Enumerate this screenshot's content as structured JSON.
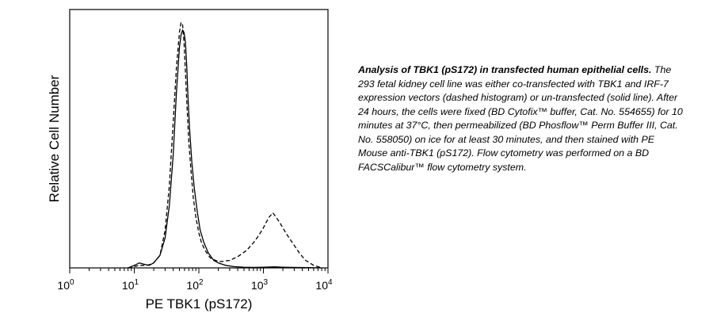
{
  "chart_data": {
    "type": "line",
    "xlabel": "PE TBK1 (pS172)",
    "ylabel": "Relative Cell Number",
    "x_scale": "log",
    "xlim": [
      1,
      10000
    ],
    "ylim": [
      0,
      1.0
    ],
    "grid": false,
    "x_tick_labels": [
      {
        "value": 1,
        "base": "10",
        "exp": "0"
      },
      {
        "value": 10,
        "base": "10",
        "exp": "1"
      },
      {
        "value": 100,
        "base": "10",
        "exp": "2"
      },
      {
        "value": 1000,
        "base": "10",
        "exp": "3"
      },
      {
        "value": 10000,
        "base": "10",
        "exp": "4"
      }
    ],
    "series": [
      {
        "line_style": "solid",
        "x": [
          8,
          10,
          12,
          14,
          17,
          20,
          25,
          30,
          35,
          40,
          45,
          50,
          53,
          56,
          59,
          62,
          65,
          68,
          72,
          78,
          85,
          95,
          105,
          120,
          140,
          170,
          200,
          260,
          350,
          500,
          700,
          1000,
          1500,
          2000,
          3000,
          5000,
          8000
        ],
        "y": [
          0.0,
          0.01,
          0.02,
          0.015,
          0.01,
          0.02,
          0.05,
          0.12,
          0.25,
          0.45,
          0.7,
          0.88,
          0.93,
          0.95,
          0.94,
          0.9,
          0.8,
          0.68,
          0.55,
          0.42,
          0.32,
          0.22,
          0.15,
          0.1,
          0.06,
          0.03,
          0.02,
          0.01,
          0.005,
          0.003,
          0.002,
          0.003,
          0.004,
          0.003,
          0.002,
          0.001,
          0.0
        ]
      },
      {
        "line_style": "dashed",
        "x": [
          8,
          12,
          16,
          20,
          25,
          30,
          35,
          40,
          45,
          50,
          53,
          56,
          59,
          62,
          66,
          70,
          76,
          82,
          90,
          100,
          110,
          125,
          150,
          180,
          220,
          300,
          400,
          550,
          700,
          850,
          1000,
          1200,
          1400,
          1600,
          1800,
          2100,
          2500,
          3000,
          3600,
          4500,
          6000,
          8000
        ],
        "y": [
          0.0,
          0.01,
          0.01,
          0.02,
          0.05,
          0.15,
          0.33,
          0.58,
          0.8,
          0.94,
          0.98,
          0.97,
          0.9,
          0.78,
          0.63,
          0.5,
          0.38,
          0.28,
          0.2,
          0.14,
          0.1,
          0.07,
          0.04,
          0.03,
          0.025,
          0.03,
          0.045,
          0.07,
          0.1,
          0.13,
          0.16,
          0.2,
          0.22,
          0.2,
          0.18,
          0.15,
          0.12,
          0.09,
          0.06,
          0.03,
          0.01,
          0.0
        ]
      }
    ]
  },
  "caption": {
    "title": "Analysis of TBK1 (pS172) in transfected human epithelial cells.",
    "body": " The 293 fetal kidney cell line was either co-transfected with TBK1 and IRF-7 expression vectors (dashed histogram) or un-transfected (solid line).  After 24 hours, the cells were fixed (BD Cytofix™ buffer, Cat. No. 554655) for 10 minutes at 37°C, then permeabilized (BD Phosflow™ Perm Buffer III, Cat. No. 558050) on ice for at least 30 minutes, and then stained with PE Mouse anti-TBK1 (pS172).  Flow cytometry was performed on a BD FACSCalibur™ flow cytometry system."
  }
}
